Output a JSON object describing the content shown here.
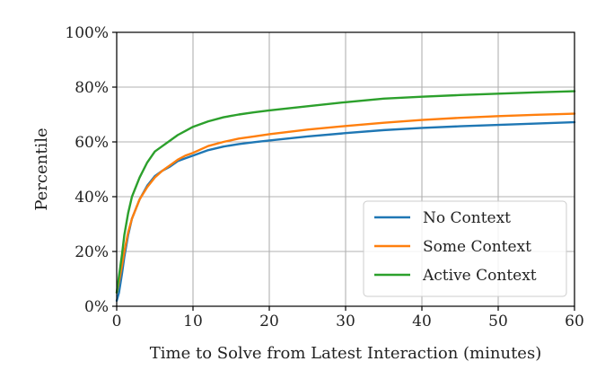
{
  "chart_data": {
    "type": "line",
    "title": "",
    "xlabel": "Time to Solve from Latest Interaction (minutes)",
    "ylabel": "Percentile",
    "xlim": [
      0,
      60
    ],
    "ylim": [
      0,
      100
    ],
    "x_ticks": [
      0,
      10,
      20,
      30,
      40,
      50,
      60
    ],
    "x_tick_labels": [
      "0",
      "10",
      "20",
      "30",
      "40",
      "50",
      "60"
    ],
    "y_ticks": [
      0,
      20,
      40,
      60,
      80,
      100
    ],
    "y_tick_labels": [
      "0%",
      "20%",
      "40%",
      "60%",
      "80%",
      "100%"
    ],
    "grid": true,
    "legend_position": "lower-right",
    "series": [
      {
        "name": "No Context",
        "color": "#1f77b4",
        "x": [
          0,
          0.3,
          0.7,
          1,
          1.5,
          2,
          3,
          4,
          5,
          6,
          7,
          8,
          9,
          10,
          12,
          14,
          16,
          18,
          20,
          25,
          30,
          35,
          40,
          45,
          50,
          55,
          60
        ],
        "y": [
          2,
          5,
          12,
          18,
          26,
          32,
          39,
          44,
          47.5,
          49.5,
          51,
          53,
          54,
          55,
          57,
          58.3,
          59.2,
          59.9,
          60.5,
          62,
          63.2,
          64.3,
          65.1,
          65.7,
          66.2,
          66.7,
          67.2
        ]
      },
      {
        "name": "Some Context",
        "color": "#ff7f0e",
        "x": [
          0,
          0.3,
          0.7,
          1,
          1.5,
          2,
          3,
          4,
          5,
          6,
          7,
          8,
          9,
          10,
          12,
          14,
          16,
          18,
          20,
          25,
          30,
          35,
          40,
          45,
          50,
          55,
          60
        ],
        "y": [
          5,
          9,
          15,
          20,
          27,
          32,
          39,
          43.5,
          47,
          49.5,
          51.5,
          53.5,
          55,
          56,
          58.5,
          60,
          61.2,
          62,
          62.8,
          64.5,
          65.8,
          67,
          68,
          68.8,
          69.4,
          69.9,
          70.3
        ]
      },
      {
        "name": "Active Context",
        "color": "#2ca02c",
        "x": [
          0,
          0.3,
          0.7,
          1,
          1.5,
          2,
          3,
          4,
          5,
          6,
          7,
          8,
          9,
          10,
          12,
          14,
          16,
          18,
          20,
          25,
          30,
          35,
          40,
          45,
          50,
          55,
          60
        ],
        "y": [
          5,
          11,
          19,
          26,
          34,
          40,
          47,
          52.5,
          56.5,
          58.5,
          60.5,
          62.5,
          64,
          65.5,
          67.5,
          69,
          70,
          70.8,
          71.5,
          73,
          74.5,
          75.8,
          76.5,
          77.1,
          77.6,
          78.1,
          78.5
        ]
      }
    ]
  }
}
